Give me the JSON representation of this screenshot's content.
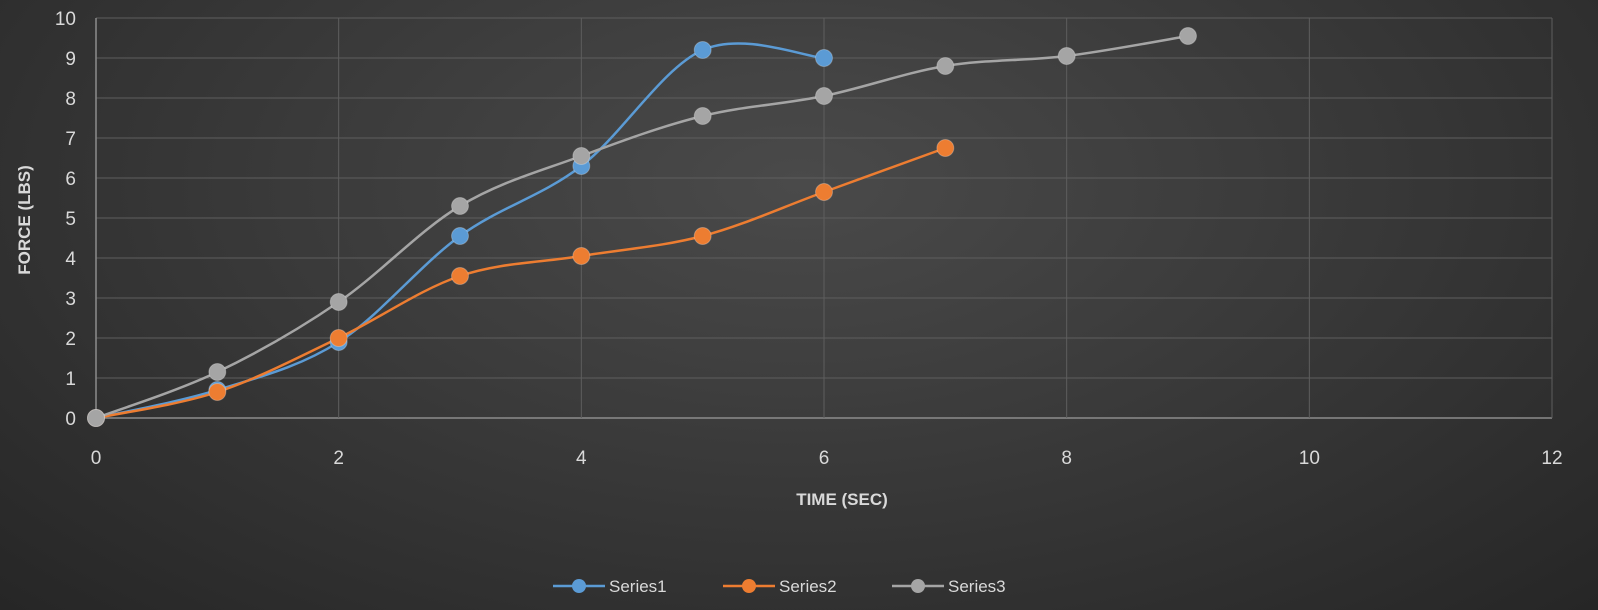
{
  "chart_data": {
    "type": "scatter",
    "xlabel": "TIME (SEC)",
    "ylabel": "FORCE (LBS)",
    "xlim": [
      0,
      12
    ],
    "ylim": [
      0,
      10
    ],
    "xticks": [
      0,
      2,
      4,
      6,
      8,
      10,
      12
    ],
    "yticks": [
      0,
      1,
      2,
      3,
      4,
      5,
      6,
      7,
      8,
      9,
      10
    ],
    "grid": true,
    "smooth_lines": true,
    "legend_position": "bottom",
    "series": [
      {
        "name": "Series1",
        "color": "#5b9bd5",
        "x": [
          0,
          1,
          2,
          3,
          4,
          5,
          6
        ],
        "y": [
          0,
          0.7,
          1.9,
          4.55,
          6.3,
          9.2,
          9.0
        ]
      },
      {
        "name": "Series2",
        "color": "#ed7d31",
        "x": [
          0,
          1,
          2,
          3,
          4,
          5,
          6,
          7
        ],
        "y": [
          0,
          0.65,
          2.0,
          3.55,
          4.05,
          4.55,
          5.65,
          6.75
        ]
      },
      {
        "name": "Series3",
        "color": "#a5a5a5",
        "x": [
          0,
          1,
          2,
          3,
          4,
          5,
          6,
          7,
          8,
          9
        ],
        "y": [
          0,
          1.15,
          2.9,
          5.3,
          6.55,
          7.55,
          8.05,
          8.8,
          9.05,
          9.55
        ]
      }
    ]
  }
}
